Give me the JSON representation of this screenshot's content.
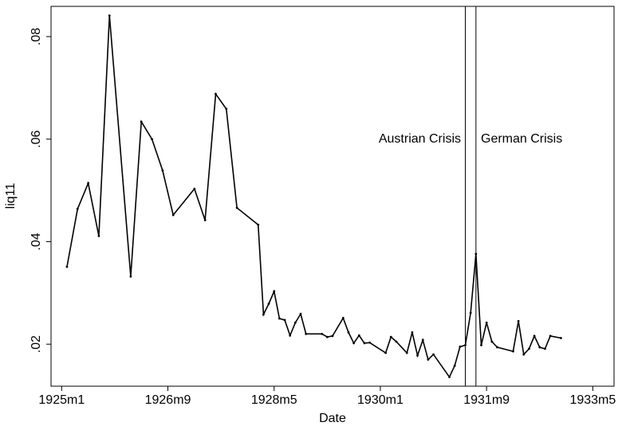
{
  "chart_data": {
    "type": "line",
    "x_label": "Date",
    "y_label": "liq11",
    "x": [
      "1925m2",
      "1925m4",
      "1925m6",
      "1925m8",
      "1925m10",
      "1926m2",
      "1926m4",
      "1926m6",
      "1926m8",
      "1926m10",
      "1927m2",
      "1927m4",
      "1927m6",
      "1927m8",
      "1927m10",
      "1928m2",
      "1928m3",
      "1928m4",
      "1928m5",
      "1928m6",
      "1928m7",
      "1928m8",
      "1928m9",
      "1928m10",
      "1928m11",
      "1929m2",
      "1929m3",
      "1929m4",
      "1929m6",
      "1929m7",
      "1929m8",
      "1929m9",
      "1929m10",
      "1929m11",
      "1930m2",
      "1930m3",
      "1930m4",
      "1930m6",
      "1930m7",
      "1930m8",
      "1930m9",
      "1930m10",
      "1930m11",
      "1931m2",
      "1931m3",
      "1931m4",
      "1931m5",
      "1931m6",
      "1931m7",
      "1931m8",
      "1931m9",
      "1931m10",
      "1931m11",
      "1932m2",
      "1932m3",
      "1932m4",
      "1932m5",
      "1932m6",
      "1932m7",
      "1932m8",
      "1932m9",
      "1932m11"
    ],
    "series": [
      {
        "name": "liq11",
        "color": "#000000",
        "values": [
          0.0351,
          0.0464,
          0.0514,
          0.0411,
          0.0841,
          0.0332,
          0.0634,
          0.06,
          0.0539,
          0.0452,
          0.0503,
          0.0442,
          0.0688,
          0.0659,
          0.0466,
          0.0433,
          0.0258,
          0.0279,
          0.0303,
          0.025,
          0.0247,
          0.0217,
          0.0242,
          0.0259,
          0.022,
          0.022,
          0.0214,
          0.0216,
          0.0251,
          0.0223,
          0.0202,
          0.0217,
          0.0202,
          0.0203,
          0.0183,
          0.0214,
          0.0205,
          0.0183,
          0.0223,
          0.0178,
          0.0208,
          0.017,
          0.018,
          0.0136,
          0.0158,
          0.0195,
          0.0198,
          0.0261,
          0.0376,
          0.0198,
          0.0242,
          0.0205,
          0.0194,
          0.0186,
          0.0245,
          0.018,
          0.0191,
          0.0216,
          0.0194,
          0.0191,
          0.0216,
          0.0212
        ]
      }
    ],
    "xlim": [
      "1924m11",
      "1933m9"
    ],
    "xticks": [
      "1925m1",
      "1926m9",
      "1928m5",
      "1930m1",
      "1931m9",
      "1933m5"
    ],
    "ylim": [
      0.0118,
      0.0859
    ],
    "yticks": [
      {
        "value": 0.02,
        "label": ".02"
      },
      {
        "value": 0.04,
        "label": ".04"
      },
      {
        "value": 0.06,
        "label": ".06"
      },
      {
        "value": 0.08,
        "label": ".08"
      }
    ],
    "vlines": [
      "1931m5",
      "1931m7"
    ],
    "annotations": [
      "Austrian Crisis",
      "German Crisis"
    ]
  }
}
